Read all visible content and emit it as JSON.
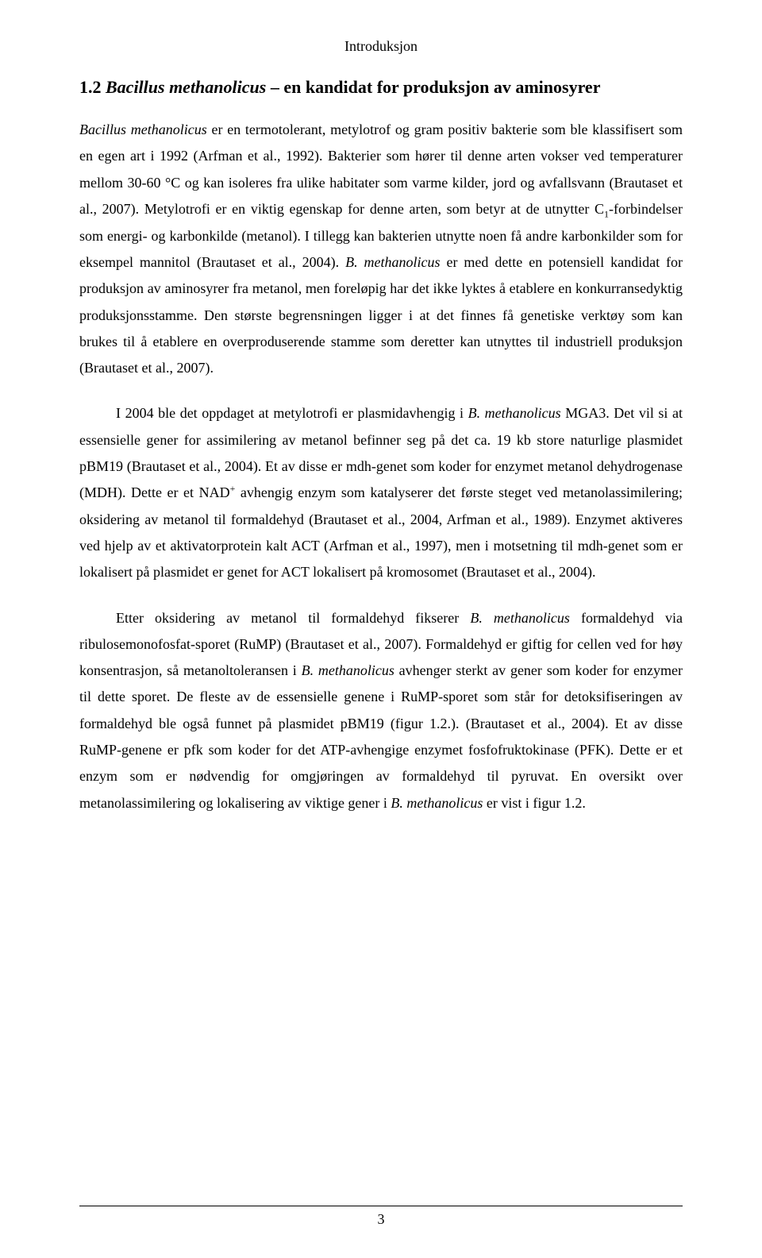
{
  "header": "Introduksjon",
  "heading_prefix": "1.2 ",
  "heading_italic": "Bacillus methanolicus",
  "heading_suffix": " – en kandidat for produksjon av aminosyrer",
  "p1_a": "Bacillus methanolicus",
  "p1_b": " er en termotolerant, metylotrof og gram positiv bakterie som ble klassifisert som en egen art i 1992 (Arfman et al., 1992). Bakterier som hører til denne arten vokser ved temperaturer mellom 30-60 °C og kan isoleres fra ulike habitater som varme kilder, jord og avfallsvann (Brautaset et al., 2007). Metylotrofi er en viktig egenskap for denne arten, som betyr at de utnytter C",
  "p1_sub": "1",
  "p1_c": "-forbindelser som energi- og karbonkilde (metanol). I tillegg kan bakterien utnytte noen få andre karbonkilder som for eksempel mannitol (Brautaset et al., 2004). ",
  "p1_d": "B. methanolicus",
  "p1_e": " er med dette en potensiell kandidat for produksjon av aminosyrer fra metanol, men foreløpig har det ikke lyktes å etablere en konkurransedyktig produksjonsstamme. Den største begrensningen ligger i at det finnes få genetiske verktøy som kan brukes til å etablere en overproduserende stamme som deretter kan utnyttes til industriell produksjon (Brautaset et al., 2007).",
  "p2_a": "I 2004 ble det oppdaget at metylotrofi er plasmidavhengig i ",
  "p2_b": "B. methanolicus",
  "p2_c": " MGA3. Det vil si at essensielle gener for assimilering av metanol befinner seg på det ca. 19 kb store naturlige plasmidet pBM19 (Brautaset et al., 2004). Et av disse er mdh-genet som koder for enzymet metanol dehydrogenase (MDH). Dette er et NAD",
  "p2_sup": "+",
  "p2_d": " avhengig enzym som katalyserer det første steget ved metanolassimilering; oksidering av metanol til formaldehyd (Brautaset et al., 2004, Arfman et al., 1989). Enzymet aktiveres ved hjelp av et aktivatorprotein kalt ACT (Arfman et al., 1997), men i motsetning til mdh-genet som er lokalisert på plasmidet er genet for ACT lokalisert på kromosomet (Brautaset et al., 2004).",
  "p3_a": "Etter oksidering av metanol til formaldehyd fikserer ",
  "p3_b": "B. methanolicus",
  "p3_c": " formaldehyd via ribulosemonofosfat-sporet (RuMP) (Brautaset et al., 2007). Formaldehyd er giftig for cellen ved for høy konsentrasjon, så metanoltoleransen i ",
  "p3_d": "B. methanolicus",
  "p3_e": " avhenger sterkt av gener som koder for enzymer til dette sporet. De fleste av de essensielle genene i RuMP-sporet som står for detoksifiseringen av formaldehyd ble også funnet på plasmidet pBM19 (figur 1.2.). (Brautaset et al., 2004). Et av disse RuMP-genene er pfk som koder for det ATP-avhengige enzymet fosfofruktokinase (PFK). Dette er et enzym som er nødvendig for omgjøringen av formaldehyd til pyruvat. En oversikt over metanolassimilering og lokalisering av viktige gener i ",
  "p3_f": "B. methanolicus",
  "p3_g": " er vist i figur 1.2.",
  "page_number": "3"
}
